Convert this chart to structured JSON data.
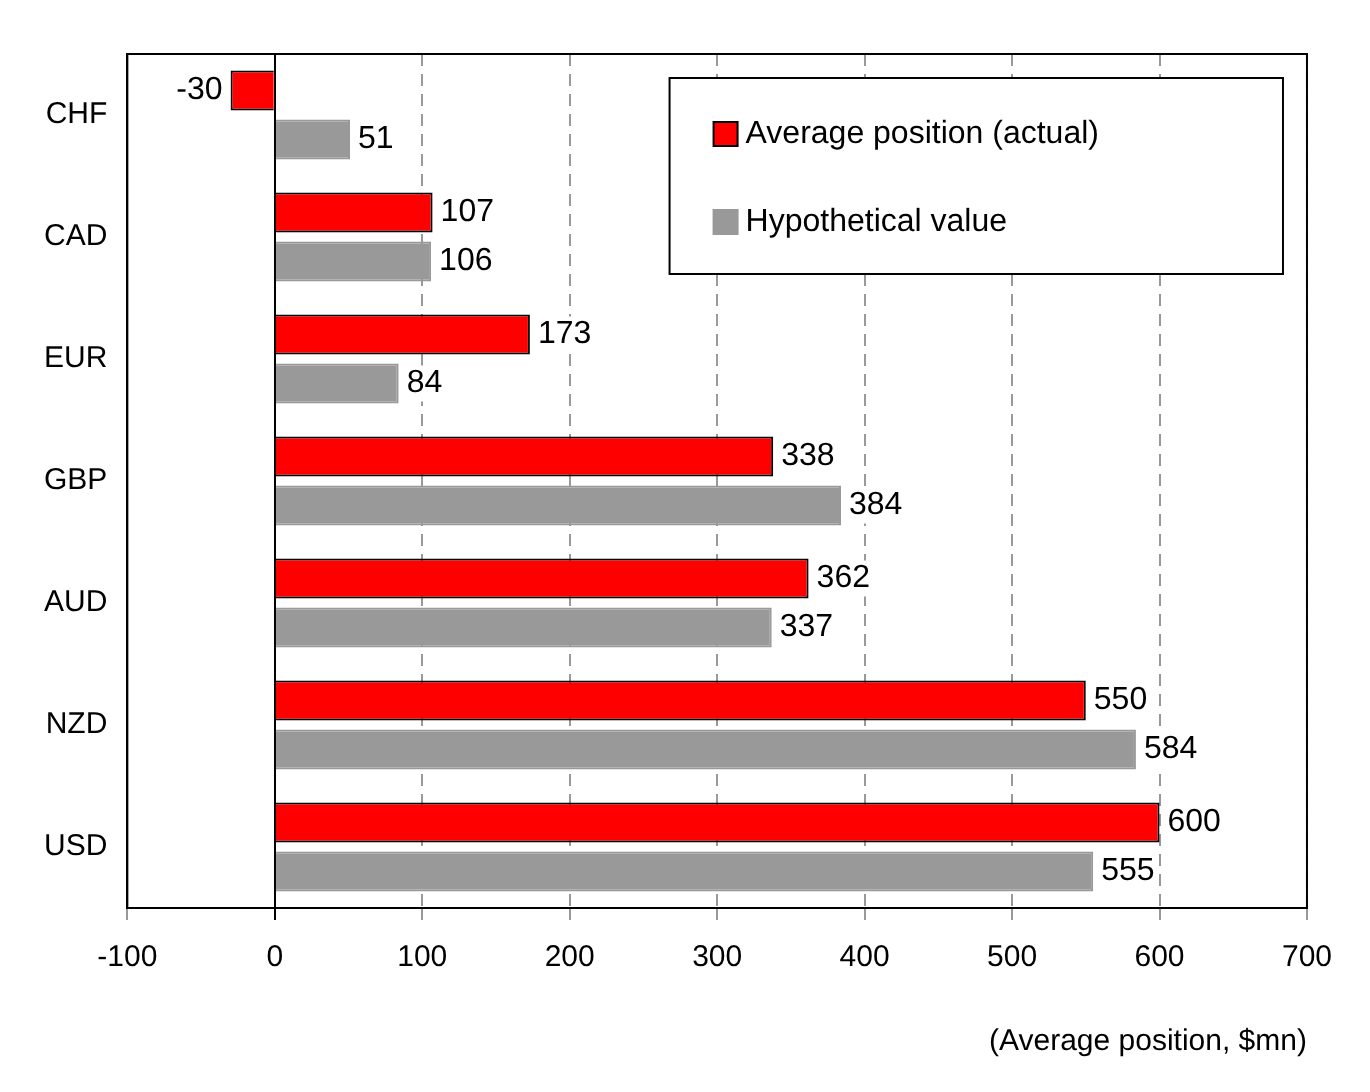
{
  "chart_data": {
    "type": "bar",
    "orientation": "horizontal",
    "xlabel": "(Average position, $mn)",
    "categories": [
      "CHF",
      "CAD",
      "EUR",
      "GBP",
      "AUD",
      "NZD",
      "USD"
    ],
    "series": [
      {
        "name": "Average position (actual)",
        "color": "#ff0000",
        "values": [
          -30,
          107,
          173,
          338,
          362,
          550,
          600
        ]
      },
      {
        "name": "Hypothetical value",
        "color": "#999999",
        "values": [
          51,
          106,
          84,
          384,
          337,
          584,
          555
        ]
      }
    ],
    "xlim": [
      -100,
      700
    ],
    "xticks": [
      -100,
      0,
      100,
      200,
      300,
      400,
      500,
      600,
      700
    ],
    "grid": "x",
    "legend": "top right",
    "data_labels": true
  }
}
